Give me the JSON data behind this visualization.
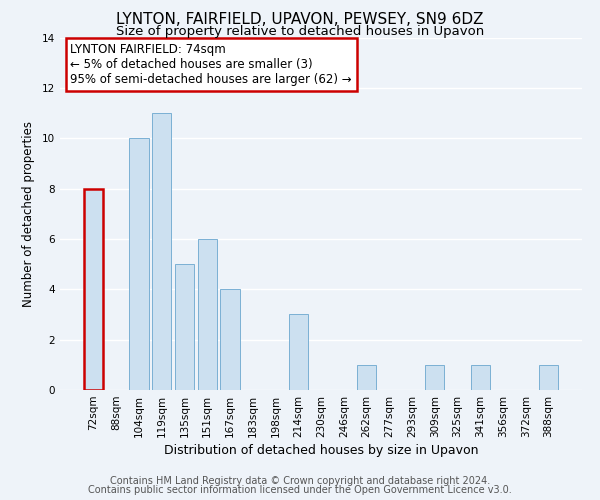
{
  "title": "LYNTON, FAIRFIELD, UPAVON, PEWSEY, SN9 6DZ",
  "subtitle": "Size of property relative to detached houses in Upavon",
  "xlabel": "Distribution of detached houses by size in Upavon",
  "ylabel": "Number of detached properties",
  "categories": [
    "72sqm",
    "88sqm",
    "104sqm",
    "119sqm",
    "135sqm",
    "151sqm",
    "167sqm",
    "183sqm",
    "198sqm",
    "214sqm",
    "230sqm",
    "246sqm",
    "262sqm",
    "277sqm",
    "293sqm",
    "309sqm",
    "325sqm",
    "341sqm",
    "356sqm",
    "372sqm",
    "388sqm"
  ],
  "values": [
    8,
    0,
    10,
    11,
    5,
    6,
    4,
    0,
    0,
    3,
    0,
    0,
    1,
    0,
    0,
    1,
    0,
    1,
    0,
    0,
    1
  ],
  "bar_color": "#cce0f0",
  "bar_edge_color": "#7ab0d4",
  "bar_linewidth": 0.7,
  "highlight_bar_index": 0,
  "highlight_bar_edge_color": "#cc0000",
  "highlight_bar_linewidth": 1.8,
  "annotation_line1": "LYNTON FAIRFIELD: 74sqm",
  "annotation_line2": "← 5% of detached houses are smaller (3)",
  "annotation_line3": "95% of semi-detached houses are larger (62) →",
  "annotation_box_edge_color": "#cc0000",
  "annotation_box_bg_color": "#ffffff",
  "ylim": [
    0,
    14
  ],
  "yticks": [
    0,
    2,
    4,
    6,
    8,
    10,
    12,
    14
  ],
  "footer_line1": "Contains HM Land Registry data © Crown copyright and database right 2024.",
  "footer_line2": "Contains public sector information licensed under the Open Government Licence v3.0.",
  "bg_color": "#eef3f9",
  "grid_color": "#ffffff",
  "title_fontsize": 11,
  "subtitle_fontsize": 9.5,
  "xlabel_fontsize": 9,
  "ylabel_fontsize": 8.5,
  "tick_fontsize": 7.5,
  "annotation_fontsize": 8.5,
  "footer_fontsize": 7
}
